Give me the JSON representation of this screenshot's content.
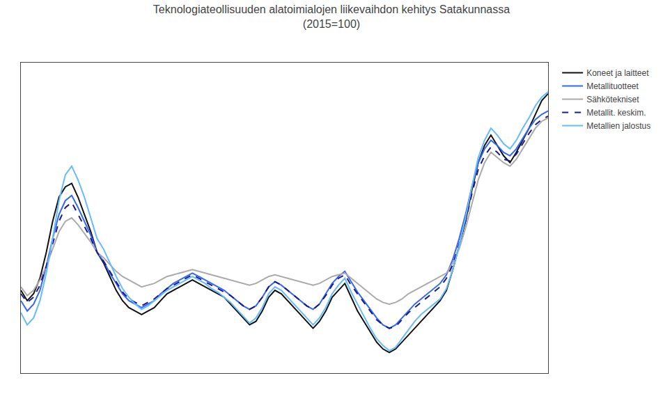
{
  "chart_data": {
    "type": "line",
    "title": "Teknologiateollisuuden alatoimialojen liikevaihdon kehitys Satakunnassa",
    "subtitle": "(2015=100)",
    "series": [
      {
        "name": "Koneet ja laitteet",
        "color": "#111111",
        "line_style": "solid",
        "values": [
          78,
          72,
          76,
          85,
          100,
          118,
          132,
          138,
          140,
          132,
          122,
          112,
          100,
          94,
          86,
          78,
          72,
          68,
          66,
          64,
          66,
          68,
          72,
          76,
          78,
          80,
          82,
          84,
          82,
          80,
          78,
          76,
          74,
          70,
          66,
          62,
          58,
          60,
          66,
          74,
          78,
          76,
          72,
          68,
          64,
          60,
          56,
          60,
          66,
          74,
          78,
          82,
          74,
          66,
          60,
          54,
          48,
          44,
          42,
          44,
          48,
          52,
          56,
          60,
          64,
          68,
          72,
          78,
          90,
          104,
          118,
          136,
          152,
          162,
          168,
          162,
          156,
          152,
          158,
          165,
          172,
          180,
          188,
          192
        ]
      },
      {
        "name": "Metallituotteet",
        "color": "#3366ff",
        "line_style": "solid",
        "values": [
          72,
          66,
          70,
          78,
          92,
          108,
          122,
          130,
          133,
          126,
          118,
          110,
          100,
          95,
          88,
          82,
          76,
          72,
          70,
          68,
          70,
          72,
          76,
          79,
          82,
          84,
          86,
          88,
          86,
          84,
          82,
          80,
          78,
          75,
          72,
          69,
          67,
          69,
          74,
          80,
          83,
          81,
          78,
          75,
          72,
          69,
          67,
          70,
          76,
          82,
          86,
          89,
          83,
          77,
          72,
          67,
          62,
          58,
          56,
          58,
          62,
          66,
          70,
          73,
          76,
          79,
          82,
          87,
          96,
          108,
          122,
          138,
          152,
          160,
          165,
          162,
          158,
          156,
          160,
          166,
          172,
          177,
          180,
          182
        ]
      },
      {
        "name": "Sähkötekniset",
        "color": "#aaaaaa",
        "line_style": "solid",
        "values": [
          80,
          75,
          78,
          84,
          92,
          102,
          112,
          118,
          120,
          116,
          111,
          106,
          100,
          97,
          93,
          89,
          86,
          84,
          82,
          80,
          81,
          82,
          84,
          86,
          87,
          88,
          89,
          90,
          89,
          88,
          87,
          86,
          85,
          84,
          83,
          82,
          81,
          82,
          84,
          86,
          87,
          86,
          85,
          84,
          83,
          82,
          81,
          82,
          84,
          86,
          87,
          88,
          85,
          82,
          79,
          76,
          73,
          71,
          70,
          71,
          73,
          76,
          78,
          80,
          82,
          84,
          86,
          88,
          94,
          102,
          114,
          128,
          142,
          152,
          158,
          155,
          152,
          150,
          154,
          160,
          166,
          172,
          176,
          178
        ]
      },
      {
        "name": "Metallit. keskim.",
        "color": "#1a1a8c",
        "line_style": "dashed",
        "values": [
          76,
          71,
          74,
          81,
          92,
          105,
          118,
          126,
          129,
          122,
          115,
          108,
          100,
          95,
          89,
          83,
          77,
          73,
          71,
          69,
          71,
          73,
          76,
          79,
          81,
          83,
          85,
          87,
          85,
          83,
          81,
          79,
          77,
          75,
          72,
          69,
          67,
          69,
          74,
          80,
          83,
          81,
          78,
          75,
          72,
          69,
          67,
          70,
          75,
          81,
          85,
          87,
          81,
          76,
          71,
          66,
          61,
          58,
          56,
          57,
          61,
          65,
          68,
          71,
          74,
          77,
          80,
          85,
          93,
          105,
          118,
          134,
          148,
          156,
          161,
          158,
          154,
          153,
          157,
          163,
          169,
          174,
          177,
          179
        ]
      },
      {
        "name": "Metallien jalostus",
        "color": "#66bbff",
        "line_style": "solid",
        "values": [
          65,
          58,
          62,
          72,
          88,
          108,
          130,
          145,
          150,
          142,
          132,
          120,
          108,
          102,
          94,
          86,
          79,
          74,
          70,
          67,
          69,
          72,
          75,
          78,
          80,
          82,
          84,
          86,
          84,
          82,
          79,
          77,
          74,
          71,
          67,
          63,
          59,
          62,
          68,
          76,
          80,
          78,
          74,
          70,
          66,
          62,
          58,
          62,
          68,
          76,
          81,
          85,
          77,
          70,
          63,
          56,
          50,
          46,
          43,
          45,
          50,
          55,
          60,
          64,
          67,
          70,
          73,
          79,
          90,
          104,
          120,
          138,
          155,
          165,
          172,
          168,
          163,
          160,
          165,
          172,
          178,
          185,
          190,
          193
        ]
      }
    ],
    "xlim": [
      0,
      83
    ],
    "ylim": [
      30,
      210
    ],
    "tick_labels": false,
    "grid": false,
    "legend": "upper right"
  }
}
